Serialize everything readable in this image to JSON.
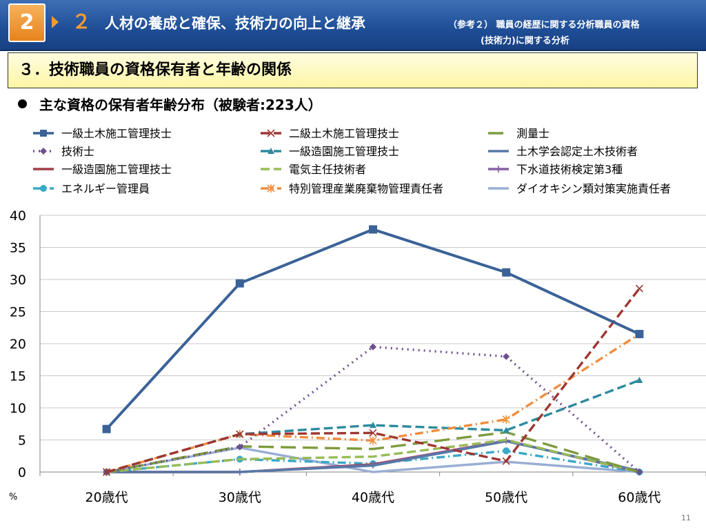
{
  "header": {
    "badge": "2",
    "section_num": "２",
    "title": "人材の養成と確保、技術力の向上と継承",
    "sub_line1": "（参考２） 職員の経歴に関する分析職員の資格",
    "sub_line2": "(技術力)に関する分析"
  },
  "subheader": {
    "title": "３．技術職員の資格保有者と年齢の関係"
  },
  "bullet": {
    "text": "主な資格の保有者年齢分布（被験者:223人）"
  },
  "page_number": "11",
  "chart_data": {
    "type": "line",
    "categories": [
      "20歳代",
      "30歳代",
      "40歳代",
      "50歳代",
      "60歳代"
    ],
    "ylim": [
      0,
      40
    ],
    "yticks": [
      0,
      5,
      10,
      15,
      20,
      25,
      30,
      35,
      40
    ],
    "ylabel": "%",
    "grid": true,
    "legend_position": "top",
    "series": [
      {
        "name": "一級土木施工管理技士",
        "values": [
          6.7,
          29.4,
          37.8,
          31.1,
          21.5
        ],
        "color": "#3a6297",
        "dash": "solid",
        "marker": "square"
      },
      {
        "name": "二級土木施工管理技士",
        "values": [
          0,
          5.9,
          6.1,
          1.7,
          28.6
        ],
        "color": "#9e3632",
        "dash": "dash",
        "marker": "x"
      },
      {
        "name": "測量士",
        "values": [
          0,
          4.0,
          3.6,
          6.2,
          0
        ],
        "color": "#7e9a3c",
        "dash": "longdash",
        "marker": "none"
      },
      {
        "name": "技術士",
        "values": [
          0,
          3.9,
          19.5,
          18.0,
          0
        ],
        "color": "#6d4f8e",
        "dash": "dot",
        "marker": "diamond"
      },
      {
        "name": "一級造園施工管理技士",
        "values": [
          0,
          5.9,
          7.3,
          6.5,
          14.3
        ],
        "color": "#2d8a9e",
        "dash": "dash",
        "marker": "triangle"
      },
      {
        "name": "土木学会認定土木技術者",
        "values": [
          0,
          0,
          1.0,
          4.8,
          0.2
        ],
        "color": "#5878a6",
        "dash": "solid",
        "marker": "none"
      },
      {
        "name": "一級造園施工管理技士",
        "values": [
          0,
          0,
          1.2,
          4.9,
          0
        ],
        "color": "#a33d46",
        "dash": "solid",
        "marker": "none"
      },
      {
        "name": "電気主任技術者",
        "values": [
          0,
          2.0,
          2.4,
          5.0,
          0
        ],
        "color": "#98bb55",
        "dash": "dash",
        "marker": "none"
      },
      {
        "name": "下水道技術検定第3種",
        "values": [
          0,
          0,
          1.1,
          4.9,
          0
        ],
        "color": "#8461a3",
        "dash": "solid",
        "marker": "plus"
      },
      {
        "name": "エネルギー管理員",
        "values": [
          0,
          2.0,
          1.3,
          3.3,
          0
        ],
        "color": "#3aa8c7",
        "dash": "dashdot",
        "marker": "circle"
      },
      {
        "name": "特別管理産業廃棄物管理責任者",
        "values": [
          0,
          5.9,
          4.9,
          8.2,
          21.5
        ],
        "color": "#f08c3c",
        "dash": "dashdot",
        "marker": "star"
      },
      {
        "name": "ダイオキシン類対策実施責任者",
        "values": [
          0,
          3.8,
          0,
          1.6,
          0
        ],
        "color": "#9aaed4",
        "dash": "solid",
        "marker": "none"
      }
    ]
  }
}
